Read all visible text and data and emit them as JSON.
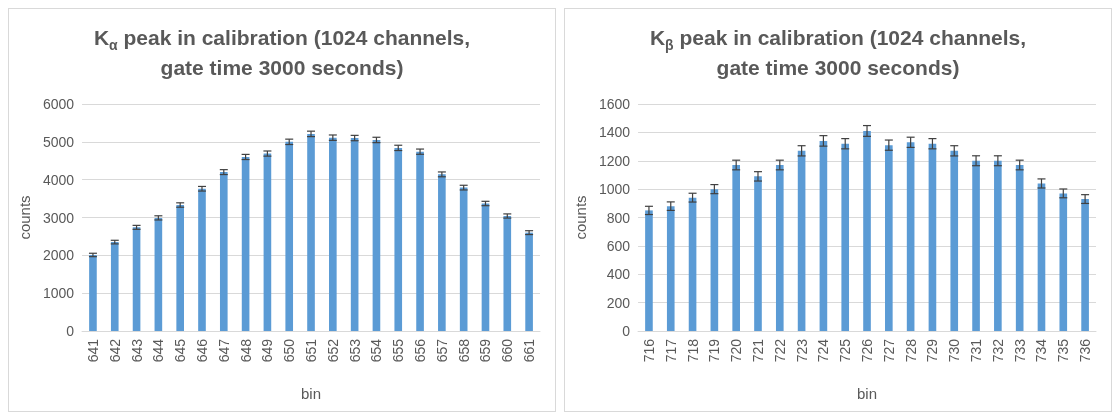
{
  "chart_data": [
    {
      "type": "bar",
      "title": "K$_{α}$ peak in calibration (1024 channels,\ngate time 3000 seconds)",
      "xlabel": "bin",
      "ylabel": "counts",
      "categories": [
        "641",
        "642",
        "643",
        "644",
        "645",
        "646",
        "647",
        "648",
        "649",
        "650",
        "651",
        "652",
        "653",
        "654",
        "655",
        "656",
        "657",
        "658",
        "659",
        "660",
        "661"
      ],
      "series": [
        {
          "color": "#5b9bd5",
          "values": [
            2010,
            2350,
            2740,
            2990,
            3330,
            3760,
            4200,
            4600,
            4690,
            5000,
            5210,
            5110,
            5100,
            5050,
            4840,
            4740,
            4140,
            3790,
            3370,
            3040,
            2600
          ],
          "errors": [
            45,
            48,
            52,
            55,
            58,
            61,
            65,
            68,
            68,
            71,
            72,
            71,
            71,
            71,
            70,
            69,
            64,
            62,
            58,
            55,
            51
          ]
        }
      ],
      "ylim": [
        0,
        6000
      ],
      "yticks": [
        0,
        1000,
        2000,
        3000,
        4000,
        5000,
        6000
      ],
      "grid": "y"
    },
    {
      "type": "bar",
      "title": "K$_{β}$ peak in calibration (1024 channels,\ngate time 3000 seconds)",
      "xlabel": "bin",
      "ylabel": "counts",
      "categories": [
        "716",
        "717",
        "718",
        "719",
        "720",
        "721",
        "722",
        "723",
        "724",
        "725",
        "726",
        "727",
        "728",
        "729",
        "730",
        "731",
        "732",
        "733",
        "734",
        "735",
        "736"
      ],
      "series": [
        {
          "color": "#5b9bd5",
          "values": [
            850,
            880,
            940,
            1000,
            1170,
            1090,
            1170,
            1270,
            1340,
            1320,
            1410,
            1310,
            1330,
            1320,
            1270,
            1200,
            1200,
            1170,
            1040,
            970,
            930
          ],
          "errors": [
            29,
            30,
            31,
            32,
            34,
            33,
            34,
            36,
            37,
            36,
            38,
            36,
            36,
            36,
            36,
            35,
            35,
            34,
            32,
            31,
            31
          ]
        }
      ],
      "ylim": [
        0,
        1600
      ],
      "yticks": [
        0,
        200,
        400,
        600,
        800,
        1000,
        1200,
        1400,
        1600
      ],
      "grid": "y"
    }
  ]
}
